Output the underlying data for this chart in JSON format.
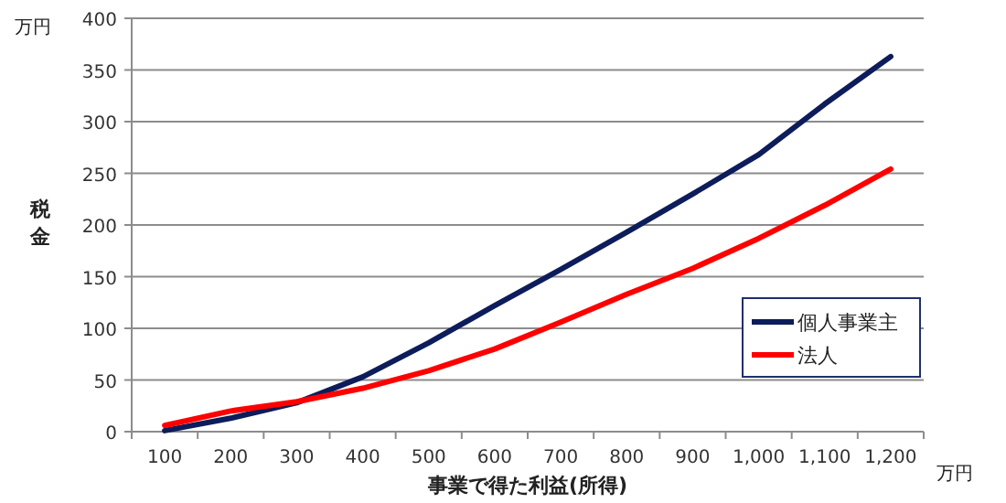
{
  "chart_data": {
    "type": "line",
    "ylabel": "税金",
    "xlabel": "事業で得た利益(所得)",
    "annotations": [
      "万円",
      "万円"
    ],
    "categories": [
      "100",
      "200",
      "300",
      "400",
      "500",
      "600",
      "700",
      "800",
      "900",
      "1,000",
      "1,100",
      "1,200"
    ],
    "series": [
      {
        "name": "個人事業主",
        "color": "#0d1c5a",
        "values": [
          1,
          13,
          28,
          53,
          86,
          122,
          157,
          193,
          230,
          268,
          317,
          363
        ]
      },
      {
        "name": "法人",
        "color": "#ff0000",
        "values": [
          6,
          20,
          29,
          42,
          59,
          80,
          106,
          133,
          158,
          187,
          219,
          254
        ]
      }
    ],
    "ylim": [
      0,
      400
    ],
    "yticks": [
      0,
      50,
      100,
      150,
      200,
      250,
      300,
      350,
      400
    ],
    "grid": "y",
    "legend": "right",
    "marker": "none",
    "line_style": "solid"
  }
}
